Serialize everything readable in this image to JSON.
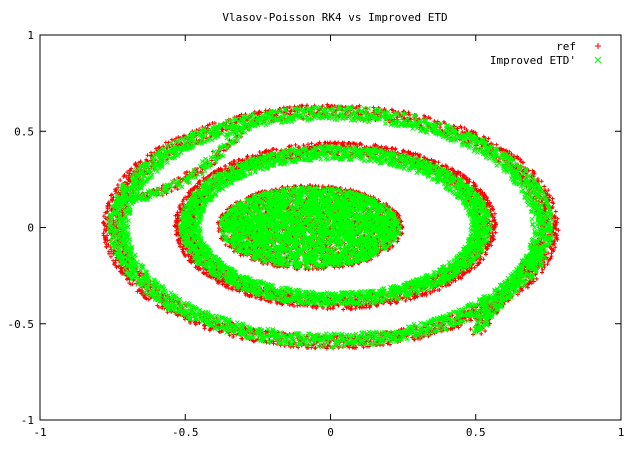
{
  "chart_data": {
    "type": "scatter",
    "title": "Vlasov-Poisson RK4 vs Improved ETD",
    "xlabel": "",
    "ylabel": "",
    "xlim": [
      -1,
      1
    ],
    "ylim": [
      -1,
      1
    ],
    "x_ticks": [
      -1,
      -0.5,
      0,
      0.5,
      1
    ],
    "y_ticks": [
      -1,
      -0.5,
      0,
      0.5,
      1
    ],
    "x_tick_labels": [
      "-1",
      "-0.5",
      "0",
      "0.5",
      "1"
    ],
    "y_tick_labels": [
      "-1",
      "-0.5",
      "0",
      "0.5",
      "1"
    ],
    "grid": false,
    "legend_position": "top-right",
    "series": [
      {
        "name": "ref",
        "marker": "plus",
        "color": "#ff0000",
        "core": {
          "cx": -0.07,
          "cy": 0.0,
          "rx": 0.32,
          "ry": 0.22
        },
        "spiral_arms": [
          {
            "cx": 0.0,
            "cy": -0.02,
            "rx": 0.75,
            "ry": 0.6,
            "theta_start": 0.0,
            "theta_end": 6.28
          },
          {
            "cx": 0.0,
            "cy": 0.0,
            "rx": 0.52,
            "ry": 0.4,
            "theta_start": 0.0,
            "theta_end": 6.28
          }
        ]
      },
      {
        "name": "Improved ETD'",
        "marker": "cross",
        "color": "#00ff00",
        "core": {
          "cx": -0.07,
          "cy": 0.0,
          "rx": 0.31,
          "ry": 0.21
        },
        "spiral_arms": [
          {
            "cx": 0.0,
            "cy": -0.02,
            "rx": 0.73,
            "ry": 0.59,
            "theta_start": 0.0,
            "theta_end": 6.28
          },
          {
            "cx": 0.0,
            "cy": 0.0,
            "rx": 0.5,
            "ry": 0.38,
            "theta_start": 0.0,
            "theta_end": 6.28
          }
        ]
      }
    ]
  }
}
